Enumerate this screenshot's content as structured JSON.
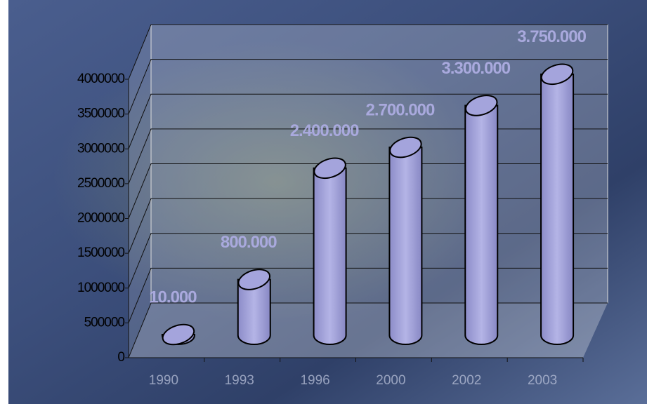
{
  "chart_data": {
    "type": "bar3d",
    "categories": [
      "1990",
      "1993",
      "1996",
      "2000",
      "2002",
      "2003"
    ],
    "values": [
      10000,
      800000,
      2400000,
      2700000,
      3300000,
      3750000
    ],
    "value_labels": [
      "10.000",
      "800.000",
      "2.400.000",
      "2.700.000",
      "3.300.000",
      "3.750.000"
    ],
    "color": "#a4a4dc",
    "ylim": [
      0,
      4000000
    ],
    "yticks": [
      0,
      500000,
      1000000,
      1500000,
      2000000,
      2500000,
      3000000,
      3500000,
      4000000
    ],
    "grid": true
  }
}
